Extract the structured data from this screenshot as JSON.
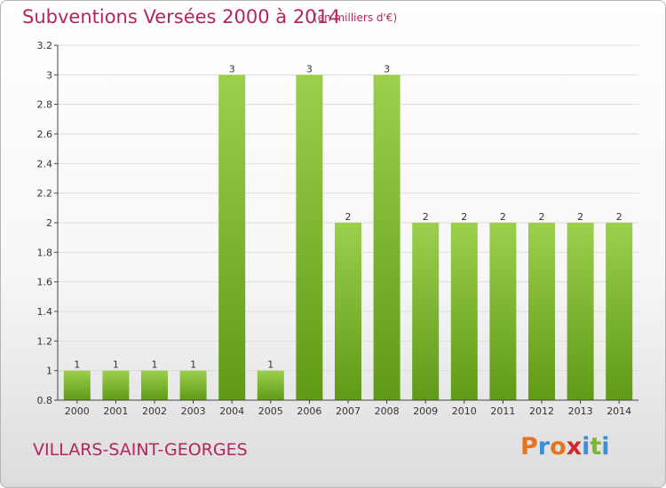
{
  "header": {
    "title": "Subventions Versées 2000 à 2014",
    "subtitle": "(en milliers d'€)"
  },
  "footer": {
    "commune": "VILLARS-SAINT-GEORGES",
    "logo_text": "Proxiti",
    "logo_colors": [
      "#e8731a",
      "#3a8fd6",
      "#e8731a",
      "#d6262a",
      "#3a8fd6",
      "#7ab829",
      "#3a8fd6"
    ]
  },
  "colors": {
    "title": "#b5245f",
    "bar_top": "#9ccf4d",
    "bar_bottom": "#5f9a16",
    "grid": "#dddddd"
  },
  "chart_data": {
    "type": "bar",
    "title": "Subventions Versées 2000 à 2014",
    "subtitle": "(en milliers d'€)",
    "xlabel": "",
    "ylabel": "",
    "categories": [
      "2000",
      "2001",
      "2002",
      "2003",
      "2004",
      "2005",
      "2006",
      "2007",
      "2008",
      "2009",
      "2010",
      "2011",
      "2012",
      "2013",
      "2014"
    ],
    "values": [
      1,
      1,
      1,
      1,
      3,
      1,
      3,
      2,
      3,
      2,
      2,
      2,
      2,
      2,
      2
    ],
    "data_labels": [
      "1",
      "1",
      "1",
      "1",
      "3",
      "1",
      "3",
      "2",
      "3",
      "2",
      "2",
      "2",
      "2",
      "2",
      "2"
    ],
    "ylim": [
      0.8,
      3.2
    ],
    "yticks": [
      0.8,
      1,
      1.2,
      1.4,
      1.6,
      1.8,
      2,
      2.2,
      2.4,
      2.6,
      2.8,
      3,
      3.2
    ],
    "ytick_labels": [
      "0.8",
      "1",
      "1.2",
      "1.4",
      "1.6",
      "1.8",
      "2",
      "2.2",
      "2.4",
      "2.6",
      "2.8",
      "3",
      "3.2"
    ],
    "grid": true,
    "legend": "none"
  }
}
